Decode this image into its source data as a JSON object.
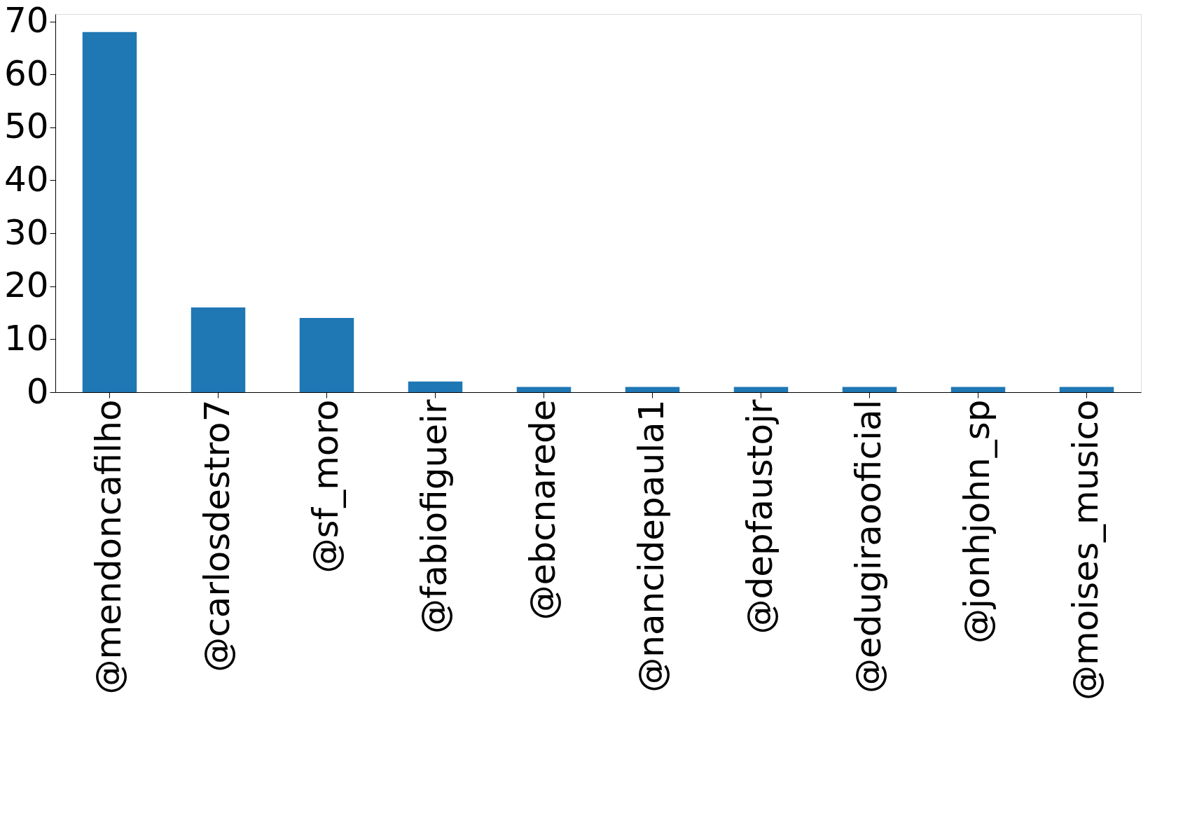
{
  "chart_data": {
    "type": "bar",
    "categories": [
      "@mendoncafilho",
      "@carlosdestro7",
      "@sf_moro",
      "@fabiofigueir",
      "@ebcnarede",
      "@nancidepaula1",
      "@depfaustojr",
      "@edugiraooficial",
      "@jonhjohn_sp",
      "@moises_musico"
    ],
    "values": [
      68,
      16,
      14,
      2,
      1,
      1,
      1,
      1,
      1,
      1
    ],
    "color": "#1f77b4",
    "ylim": [
      0,
      71.4
    ],
    "yticks": [
      0,
      10,
      20,
      30,
      40,
      50,
      60,
      70
    ],
    "grid": false,
    "legend": false
  }
}
